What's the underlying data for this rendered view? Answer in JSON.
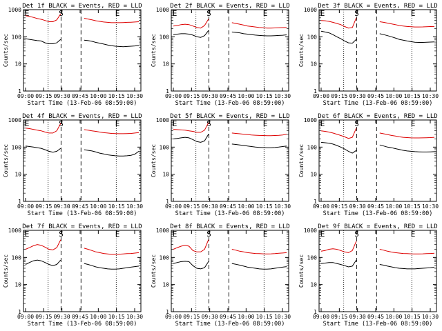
{
  "common": {
    "ylabel": "Counts/sec",
    "xlabel": "Start Time (13-Feb-06 08:59:00)",
    "x_ticks": [
      "09:00",
      "09:15",
      "09:30",
      "09:45",
      "10:00",
      "10:15",
      "10:30"
    ],
    "y_ticks": [
      "1",
      "10",
      "100",
      "1000"
    ],
    "colors": {
      "events": "#000000",
      "lld": "#dd0000",
      "axes": "#000000"
    }
  },
  "chart_data": [
    {
      "type": "line",
      "title": "Det 1f BLACK = Events, RED = LLD",
      "marks": [
        "E",
        "S",
        "E"
      ],
      "series": [
        {
          "name": "Events",
          "values": [
            85,
            80,
            76,
            72,
            70,
            60,
            55,
            55,
            60,
            80,
            0,
            0,
            0,
            0,
            0,
            75,
            72,
            68,
            62,
            58,
            54,
            50,
            47,
            45,
            44,
            43,
            44,
            45,
            46,
            48
          ]
        },
        {
          "name": "LLD",
          "values": [
            600,
            560,
            520,
            470,
            440,
            400,
            360,
            360,
            420,
            700,
            0,
            0,
            0,
            0,
            0,
            480,
            450,
            420,
            390,
            370,
            350,
            340,
            330,
            330,
            330,
            335,
            340,
            345,
            350,
            360
          ]
        }
      ]
    },
    {
      "type": "line",
      "title": "Det 2f BLACK = Events, RED = LLD",
      "marks": [
        "E",
        "S",
        "E"
      ],
      "series": [
        {
          "name": "Events",
          "values": [
            120,
            125,
            130,
            130,
            125,
            115,
            100,
            95,
            110,
            170,
            0,
            0,
            0,
            0,
            0,
            150,
            145,
            140,
            130,
            125,
            120,
            115,
            112,
            110,
            108,
            108,
            110,
            112,
            114,
            118
          ]
        },
        {
          "name": "LLD",
          "values": [
            250,
            260,
            280,
            290,
            280,
            250,
            220,
            210,
            260,
            450,
            0,
            0,
            0,
            0,
            0,
            330,
            310,
            290,
            270,
            250,
            240,
            230,
            220,
            215,
            210,
            210,
            212,
            215,
            218,
            220
          ]
        }
      ]
    },
    {
      "type": "line",
      "title": "Det 3f BLACK = Events, RED = LLD",
      "marks": [
        "E",
        "S",
        "E"
      ],
      "series": [
        {
          "name": "Events",
          "values": [
            160,
            150,
            140,
            120,
            100,
            85,
            70,
            60,
            58,
            80,
            0,
            0,
            0,
            0,
            0,
            130,
            120,
            110,
            100,
            90,
            80,
            75,
            70,
            66,
            63,
            62,
            62,
            63,
            64,
            65
          ]
        },
        {
          "name": "LLD",
          "values": [
            400,
            390,
            370,
            340,
            310,
            280,
            240,
            210,
            220,
            500,
            0,
            0,
            0,
            0,
            0,
            360,
            340,
            320,
            300,
            280,
            260,
            250,
            240,
            235,
            230,
            230,
            232,
            235,
            238,
            240
          ]
        }
      ]
    },
    {
      "type": "line",
      "title": "Det 4f BLACK = Events, RED = LLD",
      "marks": [
        "E",
        "S",
        "E"
      ],
      "series": [
        {
          "name": "Events",
          "values": [
            110,
            105,
            100,
            95,
            90,
            80,
            70,
            65,
            70,
            90,
            0,
            0,
            0,
            0,
            0,
            80,
            76,
            72,
            66,
            60,
            56,
            52,
            50,
            48,
            47,
            47,
            48,
            50,
            55,
            70
          ]
        },
        {
          "name": "LLD",
          "values": [
            500,
            480,
            450,
            420,
            400,
            360,
            330,
            330,
            400,
            750,
            0,
            0,
            0,
            0,
            0,
            440,
            420,
            400,
            380,
            360,
            340,
            330,
            320,
            315,
            312,
            312,
            315,
            320,
            330,
            345
          ]
        }
      ]
    },
    {
      "type": "line",
      "title": "Det 5f BLACK = Events, RED = LLD",
      "marks": [
        "E",
        "S",
        "E"
      ],
      "series": [
        {
          "name": "Events",
          "values": [
            200,
            210,
            220,
            230,
            220,
            190,
            160,
            150,
            170,
            300,
            0,
            0,
            0,
            0,
            0,
            130,
            125,
            120,
            115,
            110,
            105,
            100,
            98,
            96,
            95,
            95,
            97,
            100,
            105,
            110
          ]
        },
        {
          "name": "LLD",
          "values": [
            450,
            440,
            430,
            420,
            400,
            380,
            350,
            350,
            420,
            800,
            0,
            0,
            0,
            0,
            0,
            330,
            320,
            310,
            300,
            290,
            280,
            275,
            270,
            268,
            265,
            265,
            268,
            272,
            280,
            300
          ]
        }
      ]
    },
    {
      "type": "line",
      "title": "Det 6f BLACK = Events, RED = LLD",
      "marks": [
        "E",
        "S",
        "E"
      ],
      "series": [
        {
          "name": "Events",
          "values": [
            150,
            145,
            140,
            130,
            115,
            100,
            85,
            70,
            60,
            75,
            0,
            0,
            0,
            0,
            0,
            120,
            110,
            100,
            95,
            88,
            82,
            76,
            72,
            70,
            68,
            67,
            66,
            66,
            67,
            68
          ]
        },
        {
          "name": "LLD",
          "values": [
            400,
            380,
            360,
            330,
            300,
            270,
            240,
            210,
            230,
            500,
            0,
            0,
            0,
            0,
            0,
            330,
            310,
            290,
            270,
            255,
            240,
            230,
            225,
            220,
            218,
            218,
            220,
            222,
            225,
            230
          ]
        }
      ]
    },
    {
      "type": "line",
      "title": "Det 7f BLACK = Events, RED = LLD",
      "marks": [
        "E",
        "S",
        "E"
      ],
      "series": [
        {
          "name": "Events",
          "values": [
            55,
            65,
            75,
            80,
            75,
            65,
            55,
            50,
            55,
            80,
            0,
            0,
            0,
            0,
            0,
            60,
            55,
            50,
            45,
            42,
            40,
            38,
            37,
            37,
            38,
            40,
            42,
            44,
            46,
            48
          ]
        },
        {
          "name": "LLD",
          "values": [
            200,
            230,
            270,
            300,
            280,
            240,
            200,
            190,
            230,
            450,
            0,
            0,
            0,
            0,
            0,
            220,
            200,
            180,
            160,
            150,
            140,
            135,
            130,
            130,
            132,
            135,
            138,
            140,
            145,
            150
          ]
        }
      ]
    },
    {
      "type": "line",
      "title": "Det 8f BLACK = Events, RED = LLD",
      "marks": [
        "E",
        "S",
        "E"
      ],
      "series": [
        {
          "name": "Events",
          "values": [
            60,
            65,
            70,
            72,
            70,
            50,
            40,
            38,
            42,
            70,
            0,
            0,
            0,
            0,
            0,
            60,
            56,
            52,
            48,
            44,
            42,
            40,
            38,
            37,
            37,
            38,
            40,
            42,
            44,
            46
          ]
        },
        {
          "name": "LLD",
          "values": [
            200,
            230,
            260,
            280,
            260,
            180,
            160,
            160,
            200,
            450,
            0,
            0,
            0,
            0,
            0,
            200,
            185,
            170,
            160,
            150,
            145,
            140,
            138,
            136,
            135,
            136,
            138,
            142,
            146,
            150
          ]
        }
      ]
    },
    {
      "type": "line",
      "title": "Det 9f BLACK = Events, RED = LLD",
      "marks": [
        "E",
        "S",
        "E"
      ],
      "series": [
        {
          "name": "Events",
          "values": [
            60,
            62,
            65,
            65,
            60,
            55,
            50,
            45,
            48,
            80,
            0,
            0,
            0,
            0,
            0,
            55,
            52,
            48,
            45,
            42,
            40,
            39,
            38,
            38,
            38,
            39,
            40,
            41,
            42,
            44
          ]
        },
        {
          "name": "LLD",
          "values": [
            170,
            180,
            200,
            210,
            200,
            180,
            160,
            150,
            180,
            400,
            0,
            0,
            0,
            0,
            0,
            200,
            185,
            170,
            158,
            150,
            145,
            140,
            138,
            136,
            135,
            135,
            136,
            138,
            140,
            142
          ]
        }
      ]
    }
  ]
}
